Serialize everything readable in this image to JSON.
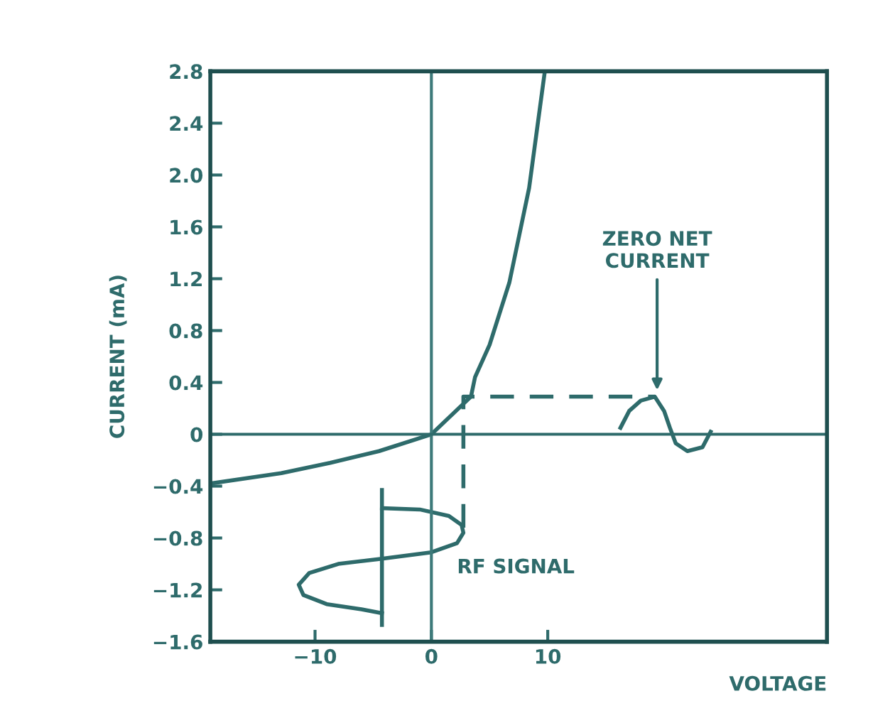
{
  "chart_data": {
    "type": "line",
    "xlabel": "VOLTAGE",
    "ylabel": "CURRENT (mA)",
    "xlim": [
      -19,
      34
    ],
    "ylim": [
      -1.6,
      2.8
    ],
    "xticks": [
      {
        "value": -10,
        "label": "−10"
      },
      0,
      10
    ],
    "yticks": [
      {
        "value": -1.6,
        "label": "−1.6"
      },
      {
        "value": -1.2,
        "label": "−1.2"
      },
      {
        "value": -0.8,
        "label": "−0.8"
      },
      {
        "value": -0.4,
        "label": "−0.4"
      },
      0,
      0.4,
      0.8,
      1.2,
      1.6,
      {
        "value": 2.0,
        "label": "2.0"
      },
      2.4,
      2.8
    ],
    "grid": false,
    "legend": false,
    "marker": "none",
    "ref_lines": [
      {
        "axis": "x",
        "value": 0,
        "color": "#3d7a7a"
      },
      {
        "axis": "y",
        "value": 0,
        "color": "#2e6b6b"
      }
    ],
    "series": [
      {
        "color": "#2e6b6b",
        "line_style": "solid",
        "x": [
          -19,
          -12.9,
          -8.7,
          -4.5,
          0,
          3.4,
          3.75,
          5,
          6.7,
          8.4,
          9.75
        ],
        "values": [
          -0.38,
          -0.3,
          -0.22,
          -0.13,
          0,
          0.29,
          0.44,
          0.69,
          1.17,
          1.9,
          2.8
        ]
      },
      {
        "color": "#2e6b6b",
        "line_style": "dashed",
        "x": [
          2.75,
          2.75,
          19.2
        ],
        "values": [
          -0.72,
          0.29,
          0.29
        ]
      },
      {
        "color": "#2e6b6b",
        "line_style": "solid",
        "x": [
          -4.25,
          -4.25
        ],
        "values": [
          -0.43,
          -1.47
        ]
      },
      {
        "color": "#2e6b6b",
        "line_style": "solid",
        "x": [
          -4.25,
          -1,
          1.5,
          2.6,
          2.75,
          2.2,
          0,
          -4.25,
          -8,
          -10.5,
          -11.4,
          -11,
          -9,
          -6,
          -4.25
        ],
        "values": [
          -0.57,
          -0.58,
          -0.63,
          -0.7,
          -0.76,
          -0.84,
          -0.91,
          -0.96,
          -1.0,
          -1.07,
          -1.16,
          -1.24,
          -1.31,
          -1.35,
          -1.38
        ]
      },
      {
        "color": "#2e6b6b",
        "line_style": "solid",
        "x": [
          16.25,
          17,
          18,
          19.2,
          20,
          20.5,
          21,
          22,
          23.3,
          24
        ],
        "values": [
          0.05,
          0.18,
          0.26,
          0.29,
          0.18,
          0.05,
          -0.07,
          -0.13,
          -0.1,
          0.02
        ]
      }
    ],
    "annotations": [
      {
        "text": "ZERO NET\nCURRENT",
        "x": 19.4,
        "y": 0.31
      },
      "RF SIGNAL"
    ]
  }
}
